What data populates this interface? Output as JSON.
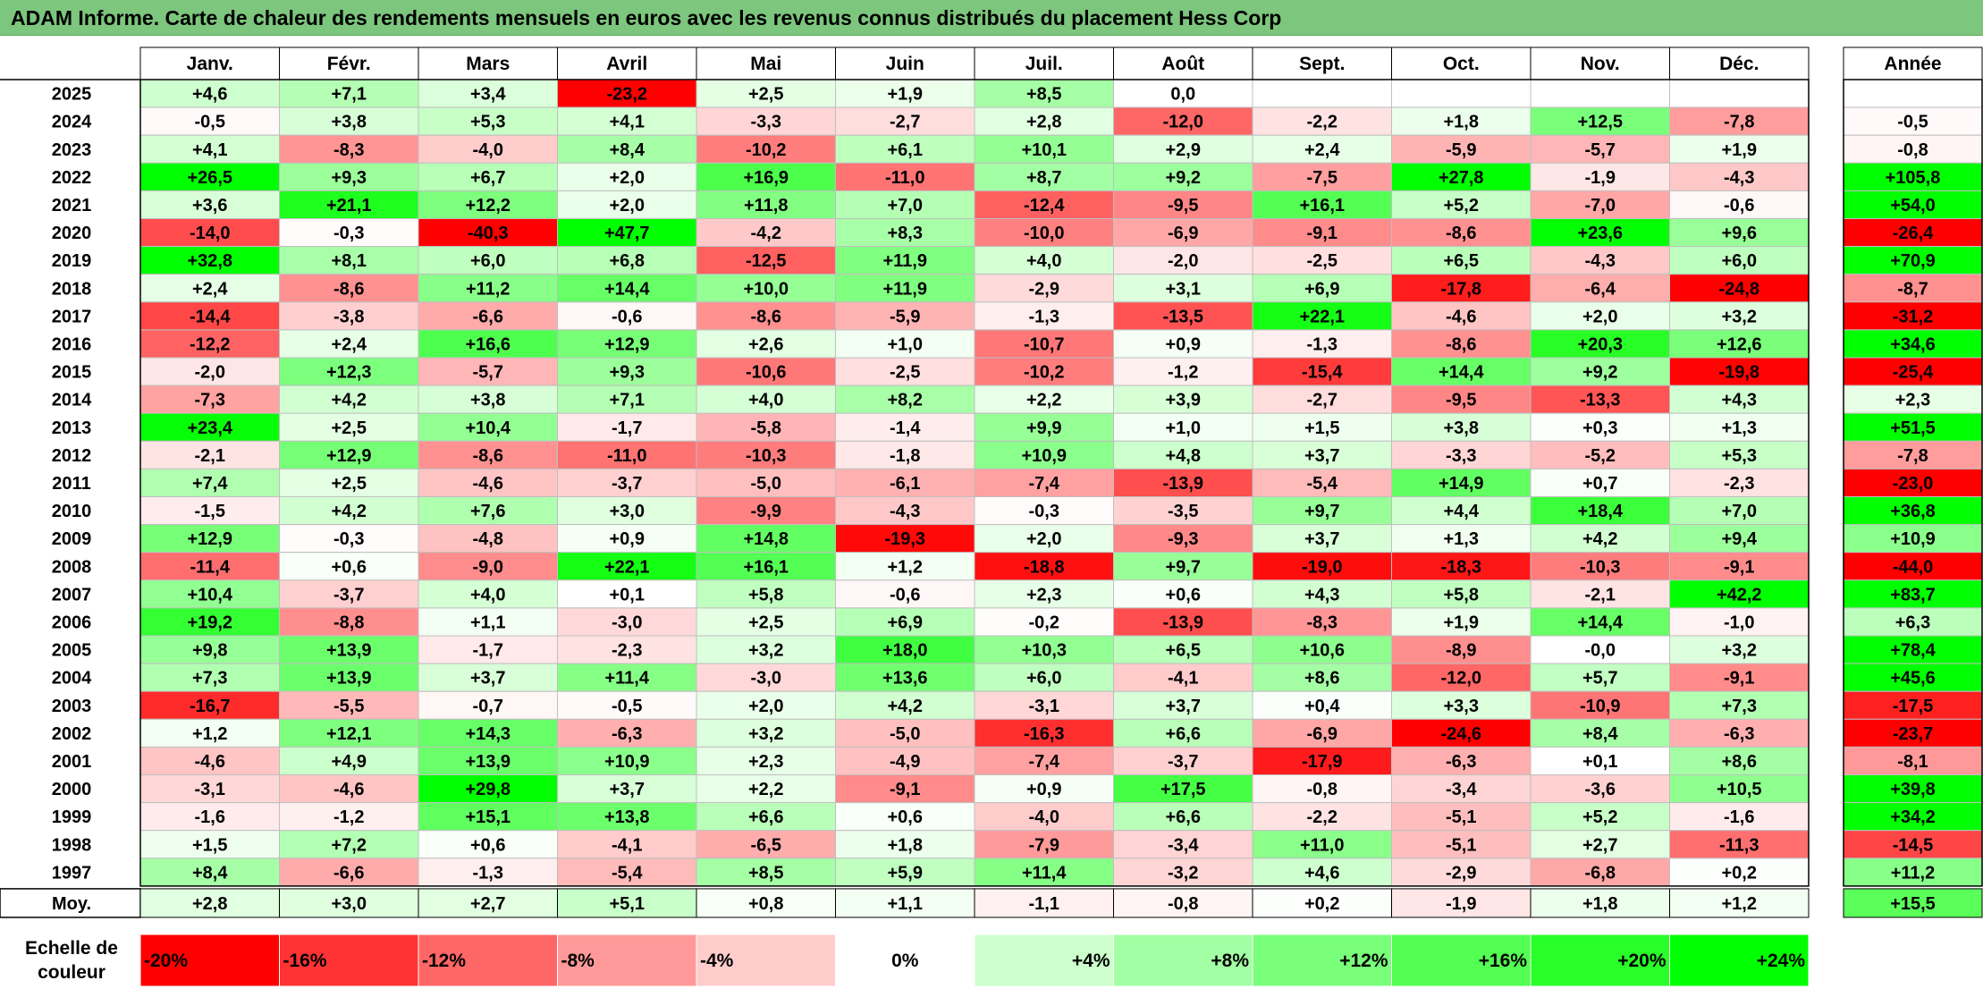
{
  "title": "ADAM Informe. Carte de chaleur des rendements mensuels en euros avec les revenus connus distribués du placement Hess Corp",
  "chart_data": {
    "type": "heatmap",
    "columns": [
      "Janv.",
      "Févr.",
      "Mars",
      "Avril",
      "Mai",
      "Juin",
      "Juil.",
      "Août",
      "Sept.",
      "Oct.",
      "Nov.",
      "Déc."
    ],
    "year_header": "Année",
    "rows": [
      {
        "label": "2025",
        "values": [
          "+4,6",
          "+7,1",
          "+3,4",
          "-23,2",
          "+2,5",
          "+1,9",
          "+8,5",
          "0,0",
          "",
          "",
          "",
          ""
        ],
        "year": ""
      },
      {
        "label": "2024",
        "values": [
          "-0,5",
          "+3,8",
          "+5,3",
          "+4,1",
          "-3,3",
          "-2,7",
          "+2,8",
          "-12,0",
          "-2,2",
          "+1,8",
          "+12,5",
          "-7,8"
        ],
        "year": "-0,5"
      },
      {
        "label": "2023",
        "values": [
          "+4,1",
          "-8,3",
          "-4,0",
          "+8,4",
          "-10,2",
          "+6,1",
          "+10,1",
          "+2,9",
          "+2,4",
          "-5,9",
          "-5,7",
          "+1,9"
        ],
        "year": "-0,8"
      },
      {
        "label": "2022",
        "values": [
          "+26,5",
          "+9,3",
          "+6,7",
          "+2,0",
          "+16,9",
          "-11,0",
          "+8,7",
          "+9,2",
          "-7,5",
          "+27,8",
          "-1,9",
          "-4,3"
        ],
        "year": "+105,8"
      },
      {
        "label": "2021",
        "values": [
          "+3,6",
          "+21,1",
          "+12,2",
          "+2,0",
          "+11,8",
          "+7,0",
          "-12,4",
          "-9,5",
          "+16,1",
          "+5,2",
          "-7,0",
          "-0,6"
        ],
        "year": "+54,0"
      },
      {
        "label": "2020",
        "values": [
          "-14,0",
          "-0,3",
          "-40,3",
          "+47,7",
          "-4,2",
          "+8,3",
          "-10,0",
          "-6,9",
          "-9,1",
          "-8,6",
          "+23,6",
          "+9,6"
        ],
        "year": "-26,4"
      },
      {
        "label": "2019",
        "values": [
          "+32,8",
          "+8,1",
          "+6,0",
          "+6,8",
          "-12,5",
          "+11,9",
          "+4,0",
          "-2,0",
          "-2,5",
          "+6,5",
          "-4,3",
          "+6,0"
        ],
        "year": "+70,9"
      },
      {
        "label": "2018",
        "values": [
          "+2,4",
          "-8,6",
          "+11,2",
          "+14,4",
          "+10,0",
          "+11,9",
          "-2,9",
          "+3,1",
          "+6,9",
          "-17,8",
          "-6,4",
          "-24,8"
        ],
        "year": "-8,7"
      },
      {
        "label": "2017",
        "values": [
          "-14,4",
          "-3,8",
          "-6,6",
          "-0,6",
          "-8,6",
          "-5,9",
          "-1,3",
          "-13,5",
          "+22,1",
          "-4,6",
          "+2,0",
          "+3,2"
        ],
        "year": "-31,2"
      },
      {
        "label": "2016",
        "values": [
          "-12,2",
          "+2,4",
          "+16,6",
          "+12,9",
          "+2,6",
          "+1,0",
          "-10,7",
          "+0,9",
          "-1,3",
          "-8,6",
          "+20,3",
          "+12,6"
        ],
        "year": "+34,6"
      },
      {
        "label": "2015",
        "values": [
          "-2,0",
          "+12,3",
          "-5,7",
          "+9,3",
          "-10,6",
          "-2,5",
          "-10,2",
          "-1,2",
          "-15,4",
          "+14,4",
          "+9,2",
          "-19,8"
        ],
        "year": "-25,4"
      },
      {
        "label": "2014",
        "values": [
          "-7,3",
          "+4,2",
          "+3,8",
          "+7,1",
          "+4,0",
          "+8,2",
          "+2,2",
          "+3,9",
          "-2,7",
          "-9,5",
          "-13,3",
          "+4,3"
        ],
        "year": "+2,3"
      },
      {
        "label": "2013",
        "values": [
          "+23,4",
          "+2,5",
          "+10,4",
          "-1,7",
          "-5,8",
          "-1,4",
          "+9,9",
          "+1,0",
          "+1,5",
          "+3,8",
          "+0,3",
          "+1,3"
        ],
        "year": "+51,5"
      },
      {
        "label": "2012",
        "values": [
          "-2,1",
          "+12,9",
          "-8,6",
          "-11,0",
          "-10,3",
          "-1,8",
          "+10,9",
          "+4,8",
          "+3,7",
          "-3,3",
          "-5,2",
          "+5,3"
        ],
        "year": "-7,8"
      },
      {
        "label": "2011",
        "values": [
          "+7,4",
          "+2,5",
          "-4,6",
          "-3,7",
          "-5,0",
          "-6,1",
          "-7,4",
          "-13,9",
          "-5,4",
          "+14,9",
          "+0,7",
          "-2,3"
        ],
        "year": "-23,0"
      },
      {
        "label": "2010",
        "values": [
          "-1,5",
          "+4,2",
          "+7,6",
          "+3,0",
          "-9,9",
          "-4,3",
          "-0,3",
          "-3,5",
          "+9,7",
          "+4,4",
          "+18,4",
          "+7,0"
        ],
        "year": "+36,8"
      },
      {
        "label": "2009",
        "values": [
          "+12,9",
          "-0,3",
          "-4,8",
          "+0,9",
          "+14,8",
          "-19,3",
          "+2,0",
          "-9,3",
          "+3,7",
          "+1,3",
          "+4,2",
          "+9,4"
        ],
        "year": "+10,9"
      },
      {
        "label": "2008",
        "values": [
          "-11,4",
          "+0,6",
          "-9,0",
          "+22,1",
          "+16,1",
          "+1,2",
          "-18,8",
          "+9,7",
          "-19,0",
          "-18,3",
          "-10,3",
          "-9,1"
        ],
        "year": "-44,0"
      },
      {
        "label": "2007",
        "values": [
          "+10,4",
          "-3,7",
          "+4,0",
          "+0,1",
          "+5,8",
          "-0,6",
          "+2,3",
          "+0,6",
          "+4,3",
          "+5,8",
          "-2,1",
          "+42,2"
        ],
        "year": "+83,7"
      },
      {
        "label": "2006",
        "values": [
          "+19,2",
          "-8,8",
          "+1,1",
          "-3,0",
          "+2,5",
          "+6,9",
          "-0,2",
          "-13,9",
          "-8,3",
          "+1,9",
          "+14,4",
          "-1,0"
        ],
        "year": "+6,3"
      },
      {
        "label": "2005",
        "values": [
          "+9,8",
          "+13,9",
          "-1,7",
          "-2,3",
          "+3,2",
          "+18,0",
          "+10,3",
          "+6,5",
          "+10,6",
          "-8,9",
          "-0,0",
          "+3,2"
        ],
        "year": "+78,4"
      },
      {
        "label": "2004",
        "values": [
          "+7,3",
          "+13,9",
          "+3,7",
          "+11,4",
          "-3,0",
          "+13,6",
          "+6,0",
          "-4,1",
          "+8,6",
          "-12,0",
          "+5,7",
          "-9,1"
        ],
        "year": "+45,6"
      },
      {
        "label": "2003",
        "values": [
          "-16,7",
          "-5,5",
          "-0,7",
          "-0,5",
          "+2,0",
          "+4,2",
          "-3,1",
          "+3,7",
          "+0,4",
          "+3,3",
          "-10,9",
          "+7,3"
        ],
        "year": "-17,5"
      },
      {
        "label": "2002",
        "values": [
          "+1,2",
          "+12,1",
          "+14,3",
          "-6,3",
          "+3,2",
          "-5,0",
          "-16,3",
          "+6,6",
          "-6,9",
          "-24,6",
          "+8,4",
          "-6,3"
        ],
        "year": "-23,7"
      },
      {
        "label": "2001",
        "values": [
          "-4,6",
          "+4,9",
          "+13,9",
          "+10,9",
          "+2,3",
          "-4,9",
          "-7,4",
          "-3,7",
          "-17,9",
          "-6,3",
          "+0,1",
          "+8,6"
        ],
        "year": "-8,1"
      },
      {
        "label": "2000",
        "values": [
          "-3,1",
          "-4,6",
          "+29,8",
          "+3,7",
          "+2,2",
          "-9,1",
          "+0,9",
          "+17,5",
          "-0,8",
          "-3,4",
          "-3,6",
          "+10,5"
        ],
        "year": "+39,8"
      },
      {
        "label": "1999",
        "values": [
          "-1,6",
          "-1,2",
          "+15,1",
          "+13,8",
          "+6,6",
          "+0,6",
          "-4,0",
          "+6,6",
          "-2,2",
          "-5,1",
          "+5,2",
          "-1,6"
        ],
        "year": "+34,2"
      },
      {
        "label": "1998",
        "values": [
          "+1,5",
          "+7,2",
          "+0,6",
          "-4,1",
          "-6,5",
          "+1,8",
          "-7,9",
          "-3,4",
          "+11,0",
          "-5,1",
          "+2,7",
          "-11,3"
        ],
        "year": "-14,5"
      },
      {
        "label": "1997",
        "values": [
          "+8,4",
          "-6,6",
          "-1,3",
          "-5,4",
          "+8,5",
          "+5,9",
          "+11,4",
          "-3,2",
          "+4,6",
          "-2,9",
          "-6,8",
          "+0,2"
        ],
        "year": "+11,2"
      }
    ],
    "average": {
      "label": "Moy.",
      "values": [
        "+2,8",
        "+3,0",
        "+2,7",
        "+5,1",
        "+0,8",
        "+1,1",
        "-1,1",
        "-0,8",
        "+0,2",
        "-1,9",
        "+1,8",
        "+1,2"
      ],
      "year": "+15,5"
    },
    "scale": {
      "label_line1": "Echelle de",
      "label_line2": "couleur",
      "stops": [
        "-20%",
        "-16%",
        "-12%",
        "-8%",
        "-4%",
        "0%",
        "+4%",
        "+8%",
        "+12%",
        "+16%",
        "+20%",
        "+24%"
      ],
      "colors": [
        "#ff0000",
        "#ff3333",
        "#ff6666",
        "#ff9999",
        "#ffcccc",
        "#ffffff",
        "#ccffcc",
        "#a3ffa3",
        "#7aff7a",
        "#52ff52",
        "#29ff29",
        "#00ff00"
      ]
    },
    "color_range": [
      -20,
      24
    ]
  }
}
